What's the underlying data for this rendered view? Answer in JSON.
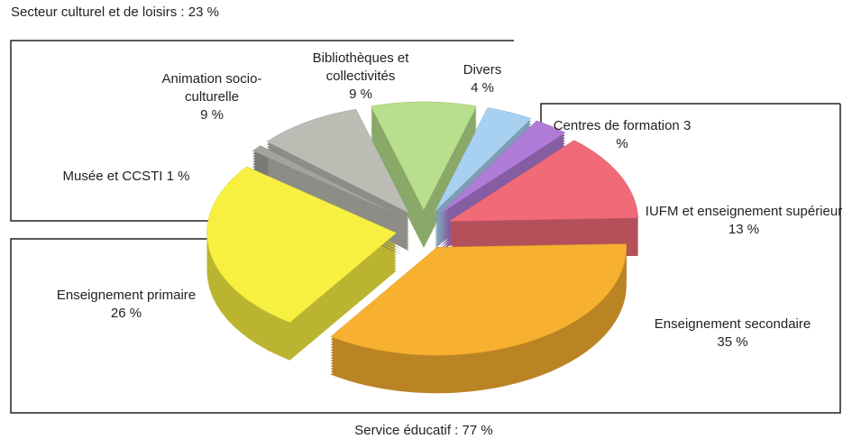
{
  "chart_data": {
    "type": "pie",
    "annotations": [
      "Secteur culturel et de loisirs : 23 %",
      "Service éducatif : 77 %"
    ],
    "categories": [
      "Bibliothèques et collectivités",
      "Divers",
      "Centres de formation",
      "IUFM et enseignement supérieur",
      "Enseignement secondaire",
      "Enseignement primaire",
      "Musée et CCSTI",
      "Animation socio-culturelle"
    ],
    "values": [
      9,
      4,
      3,
      13,
      35,
      26,
      1,
      9
    ],
    "value_labels": [
      "9 %",
      "4 %",
      "3 %",
      "13 %",
      "35 %",
      "26 %",
      "1 %",
      "9 %"
    ],
    "colors": [
      "#b8e08c",
      "#a8d0f0",
      "#b07cd8",
      "#f06a78",
      "#f8b030",
      "#f8f040",
      "#a4a49c",
      "#bcbcb4"
    ]
  }
}
